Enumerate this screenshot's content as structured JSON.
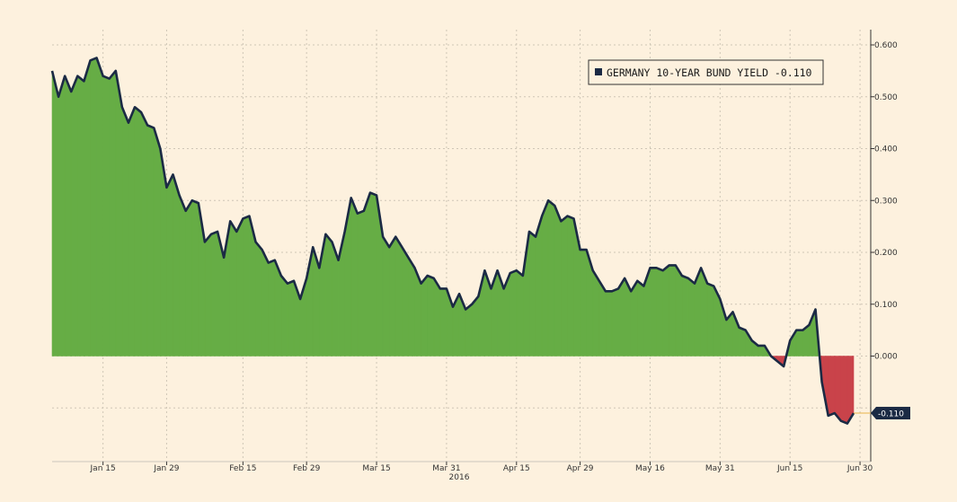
{
  "colors": {
    "background": "#fdf1de",
    "positive_fill": "#66ad45",
    "negative_fill": "#c9434a",
    "line": "#1b2a44",
    "grid": "#cfc6b6",
    "callout_bg": "#1b2a44",
    "callout_line": "#e8b44a"
  },
  "chart_data": {
    "type": "area",
    "legend": {
      "label": "GERMANY 10-YEAR BUND YIELD -0.110",
      "placement": "top-right"
    },
    "callout": {
      "label": "-0.110",
      "value": -0.11
    },
    "xlabel": "2016",
    "x_ticks": [
      {
        "label": "Jan 15",
        "index": 8
      },
      {
        "label": "Jan 29",
        "index": 18
      },
      {
        "label": "Feb 15",
        "index": 30
      },
      {
        "label": "Feb 29",
        "index": 40
      },
      {
        "label": "Mar 15",
        "index": 51
      },
      {
        "label": "Mar 31",
        "index": 62
      },
      {
        "label": "Apr 15",
        "index": 73
      },
      {
        "label": "Apr 29",
        "index": 83
      },
      {
        "label": "May 16",
        "index": 94
      },
      {
        "label": "May 31",
        "index": 105
      },
      {
        "label": "Jun 15",
        "index": 116
      },
      {
        "label": "Jun 30",
        "index": 127
      }
    ],
    "y_ticks": [
      {
        "label": "0.600",
        "value": 0.6
      },
      {
        "label": "0.500",
        "value": 0.5
      },
      {
        "label": "0.400",
        "value": 0.4
      },
      {
        "label": "0.300",
        "value": 0.3
      },
      {
        "label": "0.200",
        "value": 0.2
      },
      {
        "label": "0.100",
        "value": 0.1
      },
      {
        "label": "0.000",
        "value": 0.0
      }
    ],
    "ylim": [
      -0.2,
      0.625
    ],
    "grid": true,
    "series": [
      {
        "values": [
          0.55,
          0.5,
          0.54,
          0.51,
          0.54,
          0.53,
          0.57,
          0.575,
          0.54,
          0.535,
          0.55,
          0.48,
          0.45,
          0.48,
          0.47,
          0.445,
          0.44,
          0.4,
          0.325,
          0.35,
          0.31,
          0.28,
          0.3,
          0.295,
          0.22,
          0.235,
          0.24,
          0.19,
          0.26,
          0.24,
          0.265,
          0.27,
          0.22,
          0.205,
          0.18,
          0.185,
          0.155,
          0.14,
          0.145,
          0.11,
          0.15,
          0.21,
          0.17,
          0.235,
          0.22,
          0.185,
          0.24,
          0.305,
          0.275,
          0.28,
          0.315,
          0.31,
          0.23,
          0.21,
          0.23,
          0.21,
          0.19,
          0.17,
          0.14,
          0.155,
          0.15,
          0.13,
          0.13,
          0.095,
          0.12,
          0.09,
          0.1,
          0.115,
          0.165,
          0.13,
          0.165,
          0.13,
          0.16,
          0.165,
          0.155,
          0.24,
          0.23,
          0.27,
          0.3,
          0.29,
          0.26,
          0.27,
          0.265,
          0.205,
          0.205,
          0.165,
          0.145,
          0.125,
          0.125,
          0.13,
          0.15,
          0.125,
          0.145,
          0.135,
          0.17,
          0.17,
          0.165,
          0.175,
          0.175,
          0.155,
          0.15,
          0.14,
          0.17,
          0.14,
          0.135,
          0.11,
          0.07,
          0.085,
          0.055,
          0.05,
          0.03,
          0.02,
          0.02,
          0.0,
          -0.01,
          -0.02,
          0.03,
          0.05,
          0.05,
          0.06,
          0.09,
          -0.05,
          -0.115,
          -0.11,
          -0.125,
          -0.13,
          -0.11
        ]
      }
    ]
  }
}
